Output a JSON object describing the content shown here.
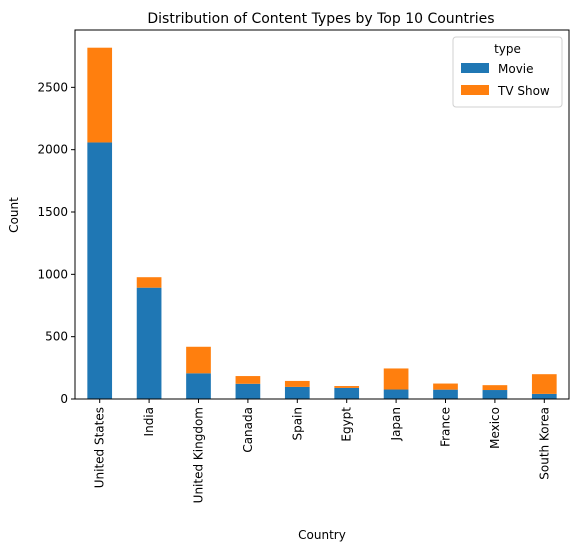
{
  "chart_data": {
    "type": "bar",
    "stacked": true,
    "title": "Distribution of Content Types by Top 10 Countries",
    "xlabel": "Country",
    "ylabel": "Count",
    "categories": [
      "United States",
      "India",
      "United Kingdom",
      "Canada",
      "Spain",
      "Egypt",
      "Japan",
      "France",
      "Mexico",
      "South Korea"
    ],
    "series": [
      {
        "name": "Movie",
        "color": "#1f77b4",
        "values": [
          2058,
          893,
          206,
          122,
          97,
          89,
          76,
          75,
          72,
          41
        ]
      },
      {
        "name": "TV Show",
        "color": "#ff7f0e",
        "values": [
          760,
          84,
          213,
          62,
          48,
          15,
          169,
          49,
          39,
          158
        ]
      }
    ],
    "ylim": [
      0,
      2960
    ],
    "yticks": [
      0,
      500,
      1000,
      1500,
      2000,
      2500
    ],
    "legend": {
      "title": "type",
      "placement": "top-right"
    },
    "grid": false
  }
}
